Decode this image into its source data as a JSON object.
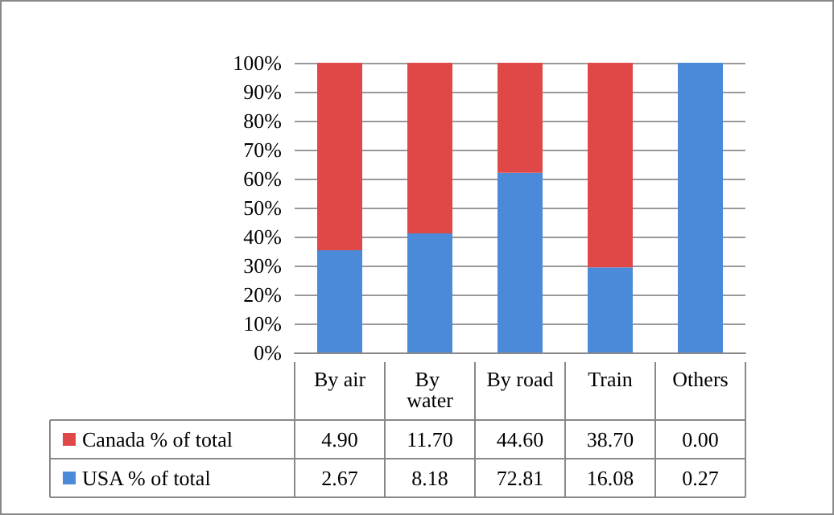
{
  "chart_data": {
    "type": "bar",
    "stacked": true,
    "categories": [
      "By air",
      "By water",
      "By road",
      "Train",
      "Others"
    ],
    "series": [
      {
        "name": "USA % of total",
        "color": "#4a8ad8",
        "values": [
          35.3,
          41.1,
          62.0,
          29.4,
          100
        ]
      },
      {
        "name": "Canada % of total",
        "color": "#e04848",
        "values": [
          64.7,
          58.9,
          38.0,
          70.6,
          0
        ]
      }
    ],
    "annotations": [
      "4.90",
      "11.70",
      "44.60",
      "38.70",
      "0.00",
      "2.67",
      "8.18",
      "72.81",
      "16.08",
      "0.27"
    ],
    "ylim": [
      0,
      100
    ],
    "yticks": [
      {
        "value": 0,
        "label": "0%"
      },
      {
        "value": 10,
        "label": "10%"
      },
      {
        "value": 20,
        "label": "20%"
      },
      {
        "value": 30,
        "label": "30%"
      },
      {
        "value": 40,
        "label": "40%"
      },
      {
        "value": 50,
        "label": "50%"
      },
      {
        "value": 60,
        "label": "60%"
      },
      {
        "value": 70,
        "label": "70%"
      },
      {
        "value": 80,
        "label": "80%"
      },
      {
        "value": 90,
        "label": "90%"
      },
      {
        "value": 100,
        "label": "100%"
      }
    ],
    "grid": true,
    "legend": "bottom"
  }
}
